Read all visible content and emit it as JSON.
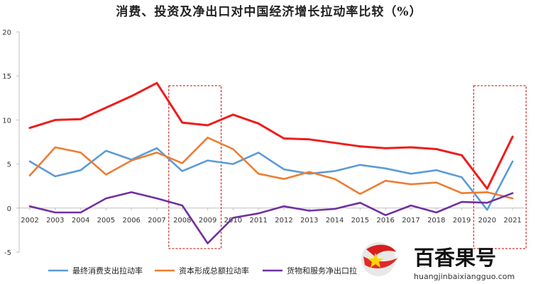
{
  "chart_data": {
    "type": "line",
    "title": "消费、投资及净出口对中国经济增长拉动率比较（%）",
    "x": [
      "2002",
      "2003",
      "2004",
      "2005",
      "2006",
      "2007",
      "2008",
      "2009",
      "2010",
      "2011",
      "2012",
      "2013",
      "2014",
      "2015",
      "2016",
      "2017",
      "2018",
      "2019",
      "2020",
      "2021"
    ],
    "ylim": [
      -5,
      20
    ],
    "yticks": [
      -5,
      0,
      5,
      10,
      15,
      20
    ],
    "legend_position": "bottom",
    "grid": false,
    "series": [
      {
        "name": "",
        "color": "#ee1c1c",
        "values": [
          9.1,
          10.0,
          10.1,
          11.4,
          12.7,
          14.2,
          9.7,
          9.4,
          10.6,
          9.6,
          7.9,
          7.8,
          7.4,
          7.0,
          6.8,
          6.9,
          6.7,
          6.0,
          2.2,
          8.1
        ]
      },
      {
        "name": "最终消费支出拉动率",
        "color": "#5b9bd5",
        "values": [
          5.3,
          3.6,
          4.3,
          6.5,
          5.5,
          6.8,
          4.2,
          5.4,
          5.0,
          6.3,
          4.4,
          3.9,
          4.2,
          4.9,
          4.5,
          3.9,
          4.3,
          3.5,
          -0.2,
          5.3
        ]
      },
      {
        "name": "资本形成总额拉动率",
        "color": "#ed7d31",
        "values": [
          3.7,
          6.9,
          6.3,
          3.8,
          5.4,
          6.3,
          5.1,
          8.0,
          6.7,
          3.9,
          3.3,
          4.1,
          3.3,
          1.6,
          3.1,
          2.7,
          2.9,
          1.7,
          1.8,
          1.1
        ]
      },
      {
        "name": "货物和服务净出口拉",
        "color": "#7030a0",
        "values": [
          0.2,
          -0.5,
          -0.5,
          1.1,
          1.8,
          1.1,
          0.3,
          -4.0,
          -1.1,
          -0.6,
          0.2,
          -0.3,
          -0.1,
          0.6,
          -0.8,
          0.3,
          -0.5,
          0.7,
          0.6,
          1.7
        ]
      }
    ],
    "highlight_ranges": [
      [
        "2008",
        "2009"
      ],
      [
        "2020",
        "2021"
      ]
    ]
  },
  "watermark": {
    "brand": "百香果号",
    "url": "huangjinbaixiangguo.com",
    "logo_icon": "star-flag-icon"
  }
}
